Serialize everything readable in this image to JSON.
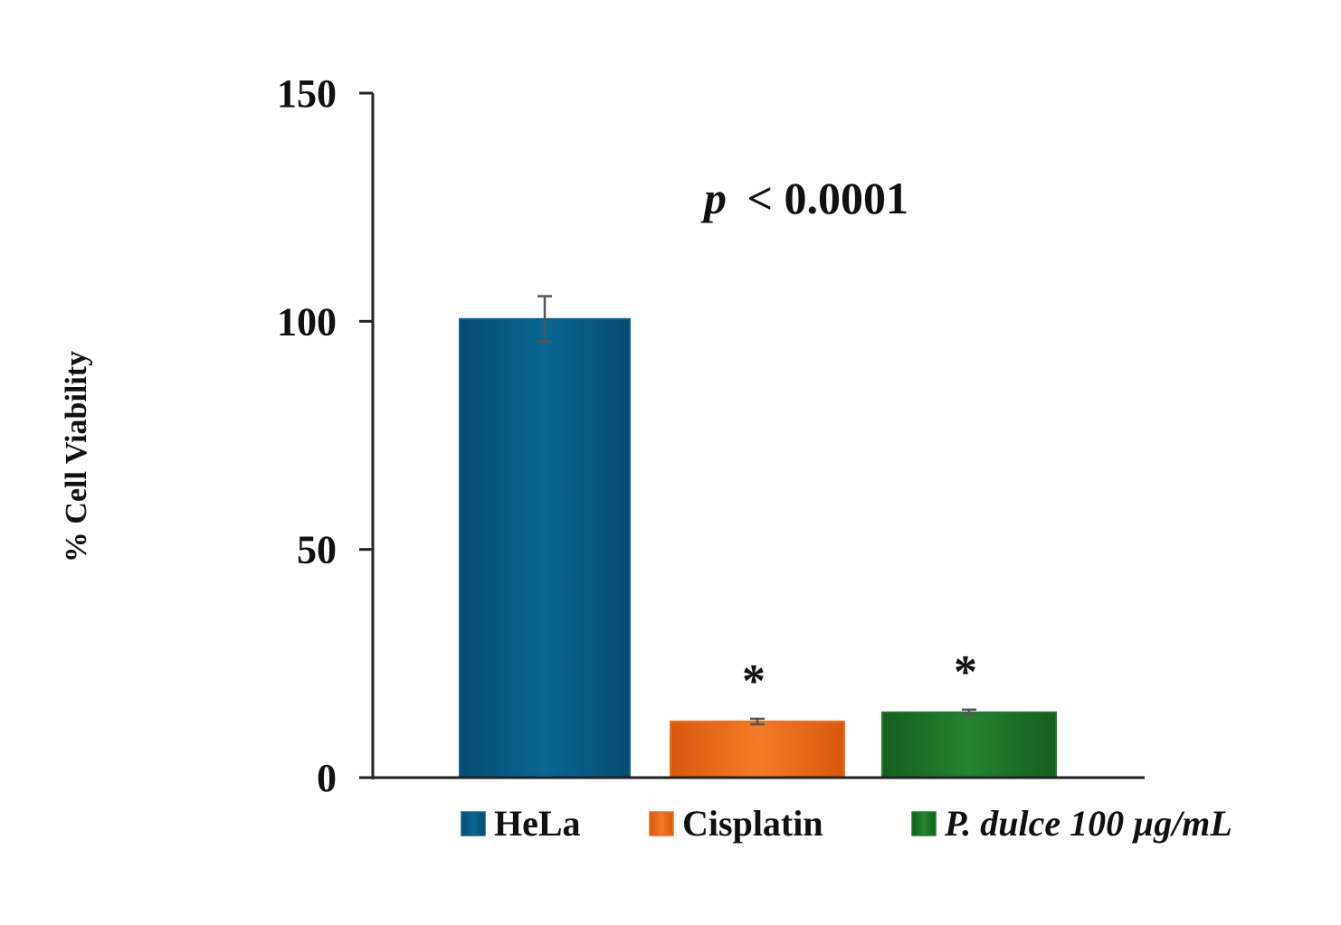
{
  "chart_data": {
    "type": "bar",
    "categories": [
      "HeLa",
      "Cisplatin",
      "P. dulce 100 µg/mL"
    ],
    "series": [
      {
        "values": [
          100.5,
          12.3,
          14.3
        ],
        "errors": [
          5,
          0.6,
          0.6
        ],
        "colors": [
          "#0a628f",
          "#ef6f1f",
          "#1f7a2a"
        ]
      }
    ],
    "ylabel": "% Cell Viability",
    "xlabel": "",
    "ylim": [
      0,
      150
    ],
    "yticks": [
      "0",
      "50",
      "100",
      "150"
    ],
    "ytick_values": [
      0,
      50,
      100,
      150
    ],
    "annotation": {
      "p_symbol": "p",
      "p_text": "< 0.0001"
    },
    "significance_markers": [
      "",
      "*",
      "*"
    ],
    "legend": {
      "placement": "bottom",
      "entries": [
        "HeLa",
        "Cisplatin",
        "P. dulce 100 µg/mL"
      ]
    },
    "grid": false
  }
}
